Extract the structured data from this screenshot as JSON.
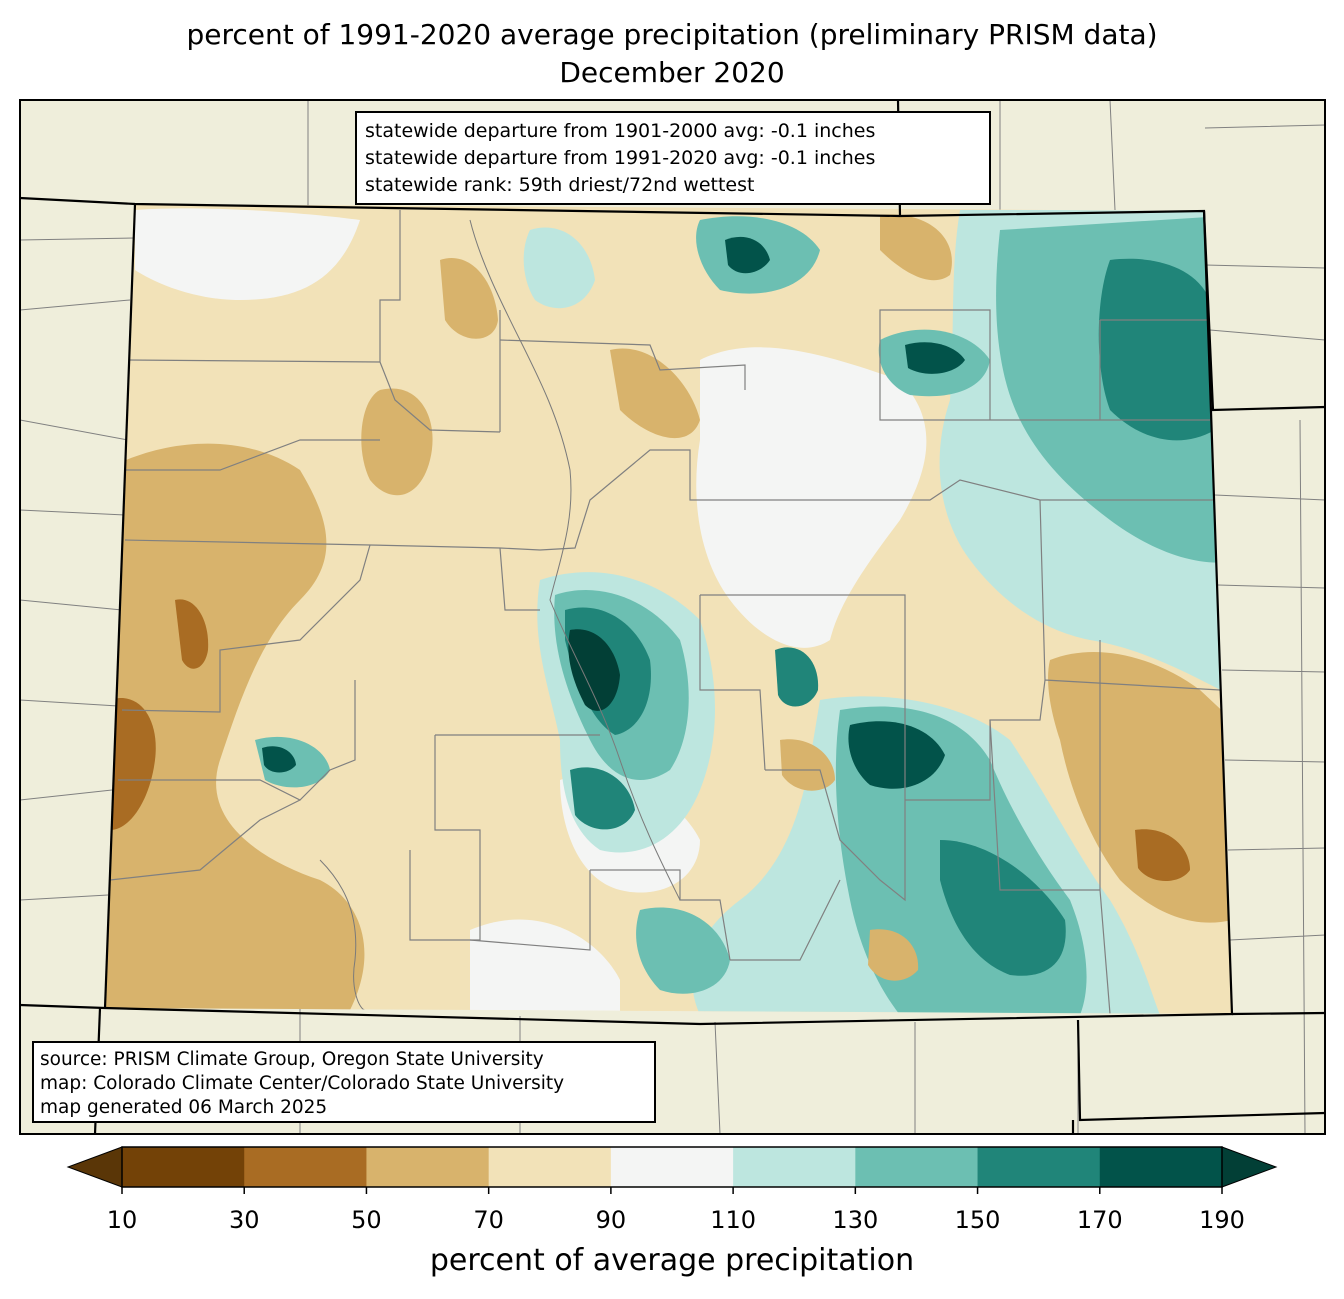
{
  "title": {
    "line1": "percent of 1991-2020 average precipitation (preliminary PRISM data)",
    "line2": "December 2020"
  },
  "stats_box": {
    "line1": "statewide departure from 1901-2000 avg: -0.1 inches",
    "line2": "statewide departure from 1991-2020 avg: -0.1 inches",
    "line3": "statewide rank: 59th driest/72nd wettest"
  },
  "source_box": {
    "line1": "source: PRISM Climate Group, Oregon State University",
    "line2": "map: Colorado Climate Center/Colorado State University",
    "line3": "map generated 06 March 2025"
  },
  "colorbar": {
    "label": "percent of average precipitation",
    "ticks": [
      "10",
      "30",
      "50",
      "70",
      "90",
      "110",
      "130",
      "150",
      "170",
      "190"
    ],
    "colors": [
      "#5a3607",
      "#734207",
      "#a96c23",
      "#d8b36c",
      "#f2e2b8",
      "#f4f5f4",
      "#bde6df",
      "#6cbfb2",
      "#208579",
      "#02534a",
      "#023f36"
    ]
  },
  "colors": {
    "land": "#efeedb",
    "county_line": "#808080",
    "state_line": "#000000"
  }
}
